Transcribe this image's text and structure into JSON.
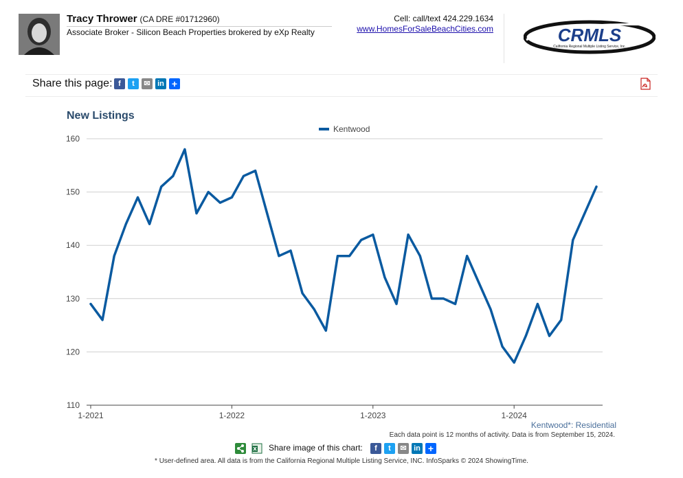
{
  "agent": {
    "name": "Tracy Thrower",
    "license": "(CA DRE #01712960)",
    "title": "Associate Broker - Silicon Beach Properties brokered by eXp Realty",
    "phone": "Cell: call/text 424.229.1634",
    "website": "www.HomesForSaleBeachCities.com"
  },
  "logo": {
    "text": "CRMLS",
    "tagline": "California Regional Multiple Listing Service, Inc."
  },
  "share": {
    "label": "Share this page:",
    "icons": [
      "facebook-icon",
      "twitter-icon",
      "email-icon",
      "linkedin-icon",
      "share-plus-icon"
    ]
  },
  "colors": {
    "line": "#0a5aa0",
    "title": "#2a4a6b",
    "link": "#1a0dab",
    "facebook": "#3b5998",
    "twitter": "#1da1f2",
    "email": "#888888",
    "linkedin": "#0077b5",
    "addtoany": "#0166ff"
  },
  "chart_data": {
    "type": "line",
    "title": "New Listings",
    "xlabel": "",
    "ylabel": "",
    "ylim": [
      110,
      160
    ],
    "yticks": [
      110,
      120,
      130,
      140,
      150,
      160
    ],
    "x_tick_labels": [
      "1-2021",
      "1-2022",
      "1-2023",
      "1-2024"
    ],
    "x_tick_indices": [
      0,
      12,
      24,
      36
    ],
    "grid": true,
    "legend_position": "top-center",
    "series": [
      {
        "name": "Kentwood",
        "color": "#0a5aa0",
        "x": [
          "1-2021",
          "2-2021",
          "3-2021",
          "4-2021",
          "5-2021",
          "6-2021",
          "7-2021",
          "8-2021",
          "9-2021",
          "10-2021",
          "11-2021",
          "12-2021",
          "1-2022",
          "2-2022",
          "3-2022",
          "4-2022",
          "5-2022",
          "6-2022",
          "7-2022",
          "8-2022",
          "9-2022",
          "10-2022",
          "11-2022",
          "12-2022",
          "1-2023",
          "2-2023",
          "3-2023",
          "4-2023",
          "5-2023",
          "6-2023",
          "7-2023",
          "8-2023",
          "9-2023",
          "10-2023",
          "11-2023",
          "12-2023",
          "1-2024",
          "2-2024",
          "3-2024",
          "4-2024",
          "5-2024",
          "6-2024",
          "7-2024",
          "8-2024"
        ],
        "values": [
          129,
          126,
          138,
          144,
          149,
          144,
          151,
          153,
          158,
          146,
          150,
          148,
          149,
          153,
          154,
          146,
          138,
          139,
          131,
          128,
          124,
          138,
          138,
          141,
          142,
          134,
          129,
          142,
          138,
          130,
          130,
          129,
          138,
          133,
          128,
          121,
          118,
          123,
          129,
          123,
          126,
          141,
          146,
          151
        ]
      }
    ]
  },
  "chart_footer": {
    "area": "Kentwood*: Residential",
    "note": "Each data point is 12 months of activity. Data is from September 15, 2024.",
    "share_image_label": "Share image of this chart:"
  },
  "disclaimer": "* User-defined area. All data is from the California Regional Multiple Listing Service, INC. InfoSparks © 2024 ShowingTime."
}
